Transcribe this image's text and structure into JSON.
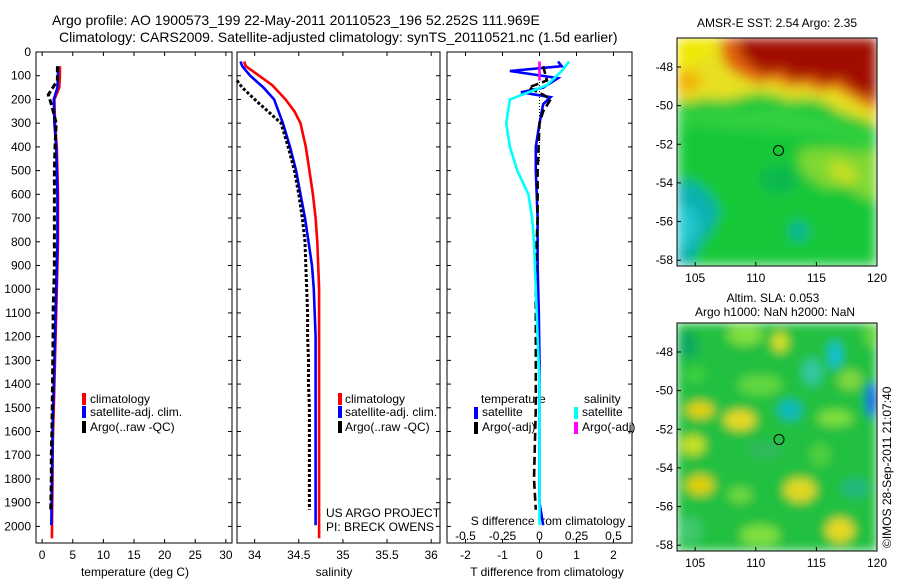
{
  "header": {
    "line1": "Argo profile: AO 1900573_199 22-May-2011 20110523_196 52.252S 111.969E",
    "line2": "Climatology: CARS2009. Satellite-adjusted climatology: synTS_20110521.nc (1.5d earlier)"
  },
  "colors": {
    "climatology": "#ff0000",
    "satellite": "#0000ff",
    "argo": "#000000",
    "salinity_satellite": "#00ffff",
    "salinity_argo": "#ff00ff"
  },
  "chart_data": [
    {
      "type": "line",
      "id": "temperature",
      "xlabel": "temperature (deg C)",
      "xlim": [
        -1,
        31
      ],
      "xticks": [
        0,
        5,
        10,
        15,
        20,
        25,
        30
      ],
      "ylim": [
        2070,
        0
      ],
      "yticks": [
        0,
        100,
        200,
        300,
        400,
        500,
        600,
        700,
        800,
        900,
        1000,
        1100,
        1200,
        1300,
        1400,
        1500,
        1600,
        1700,
        1800,
        1900,
        2000
      ],
      "legend": [
        "climatology",
        "satellite-adj. clim.",
        "Argo(..raw -QC)"
      ],
      "series": [
        {
          "name": "climatology",
          "x": [
            2.9,
            2.9,
            2.8,
            2.0,
            2.1,
            2.4,
            2.5,
            2.6,
            2.6,
            2.6,
            2.5,
            2.4,
            2.3,
            2.2,
            2.1,
            2.0,
            1.9,
            1.8,
            1.7,
            1.7,
            1.6
          ],
          "y": [
            60,
            100,
            150,
            200,
            300,
            400,
            500,
            600,
            700,
            800,
            900,
            1000,
            1100,
            1200,
            1300,
            1400,
            1500,
            1600,
            1700,
            1800,
            2050
          ]
        },
        {
          "name": "satellite-adj. clim.",
          "x": [
            2.6,
            2.6,
            2.5,
            1.9,
            2.0,
            2.3,
            2.4,
            2.5,
            2.5,
            2.5,
            2.4,
            2.3,
            2.2,
            2.1,
            2.0,
            1.9,
            1.8,
            1.7,
            1.7,
            1.6,
            1.5
          ],
          "y": [
            60,
            100,
            150,
            200,
            300,
            400,
            500,
            600,
            700,
            800,
            900,
            1000,
            1100,
            1200,
            1300,
            1400,
            1500,
            1600,
            1700,
            1800,
            1995
          ]
        },
        {
          "name": "Argo(..raw -QC)",
          "x": [
            2.5,
            2.5,
            1.0,
            1.5,
            2.3,
            2.1,
            2.0,
            2.0,
            2.0,
            1.9,
            1.8,
            1.8,
            1.7,
            1.6,
            1.5,
            1.5,
            1.4
          ],
          "y": [
            60,
            120,
            180,
            220,
            300,
            400,
            500,
            700,
            900,
            1000,
            1100,
            1200,
            1400,
            1600,
            1700,
            1800,
            1930
          ]
        }
      ]
    },
    {
      "type": "line",
      "id": "salinity",
      "xlabel": "salinity",
      "xlim": [
        33.8,
        36.1
      ],
      "xticks": [
        34,
        34.5,
        35,
        35.5,
        36
      ],
      "ylim": [
        2070,
        0
      ],
      "legend": [
        "climatology",
        "satellite-adj. clim.",
        "Argo(..raw -QC)"
      ],
      "annotations": [
        "US ARGO PROJECT",
        "PI: BRECK OWENS"
      ],
      "series": [
        {
          "name": "climatology",
          "x": [
            33.88,
            33.9,
            34.05,
            34.2,
            34.35,
            34.45,
            34.52,
            34.58,
            34.62,
            34.66,
            34.69,
            34.71,
            34.72,
            34.73,
            34.73,
            34.73,
            34.73,
            34.73,
            34.73,
            34.73,
            34.73,
            34.73,
            34.73,
            34.73
          ],
          "y": [
            40,
            60,
            100,
            140,
            200,
            250,
            300,
            400,
            500,
            600,
            700,
            800,
            900,
            1000,
            1100,
            1200,
            1300,
            1400,
            1500,
            1600,
            1700,
            1800,
            1900,
            2050
          ]
        },
        {
          "name": "satellite-adj. clim.",
          "x": [
            33.84,
            33.86,
            33.95,
            34.1,
            34.22,
            34.32,
            34.4,
            34.47,
            34.52,
            34.57,
            34.61,
            34.65,
            34.67,
            34.68,
            34.69,
            34.69,
            34.69,
            34.69,
            34.69,
            34.69,
            34.69,
            34.69,
            34.69
          ],
          "y": [
            40,
            60,
            100,
            150,
            200,
            300,
            400,
            500,
            600,
            700,
            800,
            900,
            1000,
            1100,
            1200,
            1300,
            1400,
            1500,
            1600,
            1700,
            1800,
            1900,
            1995
          ]
        },
        {
          "name": "Argo(..raw -QC)",
          "x": [
            33.8,
            33.86,
            34.0,
            34.15,
            34.3,
            34.38,
            34.45,
            34.5,
            34.54,
            34.57,
            34.58,
            34.59,
            34.6,
            34.6,
            34.61,
            34.61,
            34.62,
            34.62,
            34.62,
            34.62,
            34.62
          ],
          "y": [
            120,
            150,
            200,
            250,
            300,
            400,
            500,
            600,
            700,
            800,
            900,
            1000,
            1100,
            1200,
            1300,
            1400,
            1500,
            1600,
            1700,
            1800,
            1930
          ]
        }
      ]
    },
    {
      "type": "line",
      "id": "difference",
      "xlabel": "T difference from climatology",
      "xlabel2": "S difference from climatology",
      "xlim": [
        -2.5,
        2.5
      ],
      "xticks": [
        -2,
        -1,
        0,
        1,
        2
      ],
      "xticks2": [
        "-0.5",
        "-0.25",
        "0",
        "0.25",
        "0.5"
      ],
      "ylim": [
        2070,
        0
      ],
      "legend_titles": [
        "temperature",
        "salinity"
      ],
      "legend": [
        "satellite",
        "Argo(-adj)",
        "satellite",
        "Argo(-adj)"
      ],
      "series": [
        {
          "name": "temperature satellite",
          "x": [
            0.5,
            0.6,
            -0.8,
            0.5,
            0.1,
            -0.5,
            0.3,
            0.1,
            0,
            -0.1,
            -0.1,
            -0.05,
            -0.05,
            -0.02,
            0,
            0,
            0,
            0,
            0,
            0.1
          ],
          "y": [
            40,
            60,
            80,
            110,
            150,
            170,
            190,
            220,
            300,
            400,
            500,
            700,
            900,
            1100,
            1300,
            1500,
            1700,
            1800,
            1900,
            1995
          ]
        },
        {
          "name": "temperature Argo(-adj)",
          "x": [
            0.1,
            0.2,
            -0.3,
            0.1,
            0.3,
            0.1,
            0,
            -0.05,
            -0.05,
            -0.1,
            -0.1,
            -0.1,
            -0.1,
            -0.15,
            -0.1
          ],
          "y": [
            60,
            120,
            150,
            180,
            200,
            250,
            300,
            500,
            700,
            900,
            1100,
            1300,
            1500,
            1800,
            1930
          ]
        },
        {
          "name": "salinity satellite",
          "x": [
            0.8,
            0.6,
            0.2,
            -0.8,
            -0.9,
            -0.8,
            -0.6,
            -0.3,
            -0.2,
            -0.15,
            -0.1,
            -0.05,
            0,
            0,
            0
          ],
          "y": [
            40,
            80,
            140,
            200,
            300,
            400,
            500,
            600,
            700,
            800,
            1000,
            1200,
            1400,
            1700,
            1995
          ]
        },
        {
          "name": "salinity Argo(-adj)",
          "x": [
            0,
            0,
            0
          ],
          "y": [
            40,
            80,
            120
          ]
        }
      ]
    },
    {
      "type": "heatmap",
      "id": "sst-map",
      "title": "AMSR-E SST: 2.54  Argo: 2.35",
      "xlim": [
        103.5,
        120
      ],
      "ylim": [
        -58.3,
        -46.5
      ],
      "xticks": [
        105,
        110,
        115,
        120
      ],
      "yticks": [
        -48,
        -50,
        -52,
        -54,
        -56,
        -58
      ],
      "marker": {
        "x": 111.969,
        "y": -52.252
      }
    },
    {
      "type": "heatmap",
      "id": "sla-map",
      "title": "Altim. SLA: 0.053",
      "subtitle": "Argo h1000: NaN  h2000: NaN",
      "xlim": [
        103.5,
        120
      ],
      "ylim": [
        -58.3,
        -46.5
      ],
      "xticks": [
        105,
        110,
        115,
        120
      ],
      "yticks": [
        -48,
        -50,
        -52,
        -54,
        -56,
        -58
      ],
      "marker": {
        "x": 111.969,
        "y": -52.252
      }
    }
  ],
  "watermark": "©IMOS 28-Sep-2011 21:07:40"
}
